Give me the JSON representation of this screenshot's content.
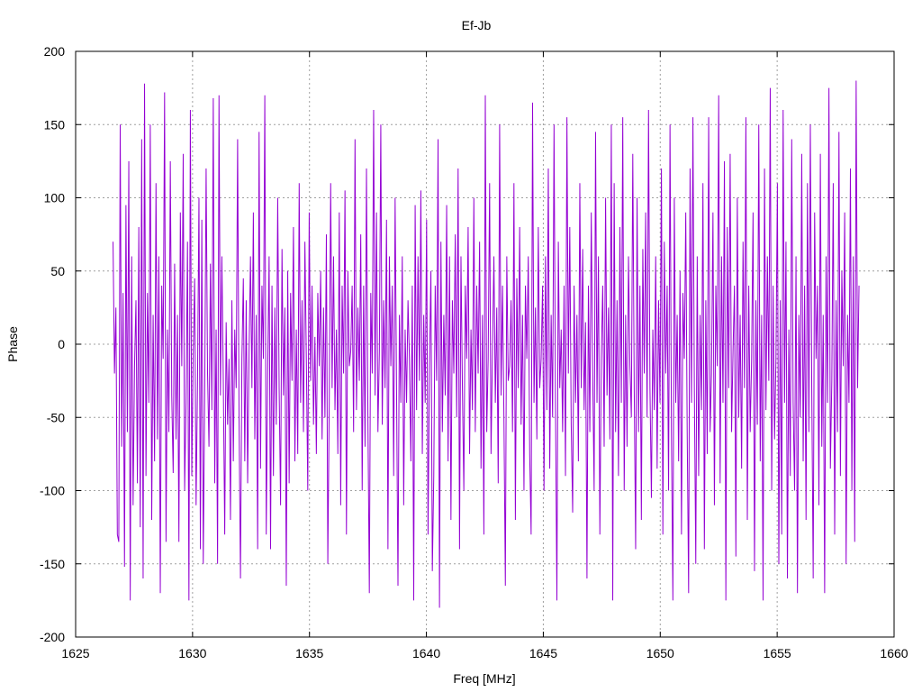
{
  "chart_data": {
    "type": "line",
    "title": "Ef-Jb",
    "xlabel": "Freq [MHz]",
    "ylabel": "Phase",
    "xlim": [
      1625,
      1660
    ],
    "ylim": [
      -200,
      200
    ],
    "xticks": [
      1625,
      1630,
      1635,
      1640,
      1645,
      1650,
      1655,
      1660
    ],
    "yticks": [
      -200,
      -150,
      -100,
      -50,
      0,
      50,
      100,
      150,
      200
    ],
    "grid": true,
    "line_color": "#9400d3",
    "series": [
      {
        "x_start": 1626.6,
        "x_end": 1658.5,
        "values": [
          70,
          -20,
          25,
          -130,
          -135,
          150,
          -70,
          35,
          -152,
          95,
          -60,
          125,
          -175,
          60,
          -110,
          -15,
          30,
          -95,
          80,
          -125,
          140,
          -160,
          178,
          -90,
          35,
          -40,
          150,
          -120,
          20,
          -80,
          110,
          -65,
          60,
          -170,
          40,
          -10,
          172,
          -135,
          10,
          -60,
          125,
          -35,
          -88,
          55,
          -65,
          20,
          -135,
          90,
          -15,
          130,
          -100,
          -40,
          70,
          -175,
          160,
          -90,
          -5,
          45,
          -110,
          -25,
          100,
          -140,
          85,
          -150,
          -35,
          120,
          -20,
          -70,
          55,
          -45,
          168,
          -95,
          10,
          -150,
          170,
          -35,
          60,
          -25,
          -130,
          15,
          -55,
          -10,
          -120,
          30,
          -80,
          10,
          -30,
          140,
          -50,
          -160,
          -10,
          45,
          -80,
          30,
          -95,
          -5,
          60,
          -30,
          90,
          -65,
          20,
          -140,
          145,
          -85,
          40,
          -10,
          170,
          -130,
          -20,
          60,
          -140,
          40,
          -90,
          25,
          -55,
          100,
          -30,
          -110,
          65,
          -35,
          25,
          -165,
          50,
          -95,
          35,
          -25,
          80,
          -80,
          10,
          -75,
          110,
          -40,
          30,
          -60,
          70,
          -10,
          -100,
          90,
          -25,
          40,
          -55,
          5,
          -75,
          35,
          -15,
          50,
          -65,
          25,
          -50,
          75,
          -150,
          -40,
          110,
          -30,
          60,
          -45,
          10,
          -75,
          90,
          -110,
          40,
          -20,
          105,
          -130,
          50,
          -15,
          -5,
          40,
          -60,
          140,
          -45,
          25,
          -25,
          75,
          -100,
          40,
          -70,
          120,
          -50,
          -170,
          35,
          -20,
          160,
          -35,
          90,
          -60,
          -5,
          150,
          -55,
          30,
          -30,
          85,
          -140,
          60,
          -15,
          40,
          -90,
          100,
          -30,
          -165,
          20,
          -40,
          60,
          -110,
          10,
          -40,
          30,
          -10,
          -80,
          40,
          -175,
          95,
          -45,
          60,
          -25,
          105,
          -75,
          20,
          -40,
          85,
          -130,
          -15,
          50,
          -155,
          -90,
          40,
          -25,
          140,
          -180,
          70,
          -60,
          20,
          -35,
          95,
          -80,
          60,
          -120,
          30,
          -20,
          75,
          -50,
          120,
          -140,
          60,
          -30,
          -100,
          40,
          -10,
          80,
          -75,
          10,
          -45,
          100,
          -60,
          40,
          -20,
          70,
          -85,
          20,
          -130,
          170,
          -60,
          -10,
          110,
          -75,
          -5,
          60,
          -40,
          25,
          -95,
          150,
          -35,
          40,
          -50,
          -165,
          60,
          -25,
          -15,
          30,
          -60,
          110,
          -120,
          45,
          -30,
          80,
          -55,
          20,
          -100,
          40,
          -10,
          60,
          -75,
          -130,
          165,
          -40,
          25,
          -65,
          80,
          -30,
          -10,
          40,
          -100,
          60,
          -45,
          120,
          -85,
          20,
          -50,
          150,
          -40,
          -175,
          70,
          -30,
          10,
          -60,
          40,
          -90,
          155,
          -20,
          80,
          -55,
          -115,
          40,
          -40,
          20,
          -80,
          110,
          -30,
          65,
          -45,
          15,
          -160,
          40,
          -60,
          90,
          -20,
          -100,
          145,
          -40,
          60,
          -130,
          -10,
          40,
          -70,
          100,
          -35,
          25,
          -65,
          150,
          -175,
          110,
          -60,
          30,
          -90,
          80,
          -40,
          155,
          -100,
          20,
          -70,
          60,
          -15,
          -50,
          130,
          -30,
          -140,
          100,
          -60,
          40,
          -120,
          65,
          -20,
          90,
          -50,
          160,
          -30,
          -105,
          10,
          -45,
          60,
          -85,
          30,
          -40,
          120,
          -130,
          70,
          -20,
          40,
          -100,
          150,
          -60,
          -175,
          100,
          -40,
          20,
          -80,
          50,
          -130,
          35,
          -10,
          90,
          -60,
          -170,
          120,
          -40,
          155,
          -30,
          -150,
          60,
          -90,
          20,
          -45,
          110,
          -140,
          30,
          -75,
          155,
          -60,
          -20,
          90,
          -110,
          40,
          -15,
          170,
          -95,
          60,
          -40,
          125,
          -175,
          80,
          -30,
          130,
          -60,
          -5,
          40,
          -145,
          100,
          -50,
          20,
          -85,
          70,
          -30,
          155,
          -120,
          40,
          -60,
          -10,
          90,
          -155,
          30,
          -55,
          150,
          -80,
          20,
          -175,
          120,
          -45,
          60,
          -25,
          175,
          -100,
          40,
          -65,
          -10,
          110,
          -150,
          30,
          -130,
          160,
          -40,
          70,
          -160,
          10,
          -90,
          140,
          -40,
          -100,
          60,
          -170,
          20,
          -50,
          130,
          -80,
          40,
          -120,
          110,
          -60,
          150,
          -30,
          -160,
          90,
          -10,
          40,
          -110,
          130,
          -70,
          20,
          -170,
          60,
          -40,
          175,
          -85,
          -25,
          110,
          -130,
          30,
          -60,
          145,
          -90,
          50,
          -15,
          90,
          -150,
          20,
          -40,
          120,
          -100,
          60,
          -135,
          180,
          -30,
          40
        ]
      }
    ]
  }
}
